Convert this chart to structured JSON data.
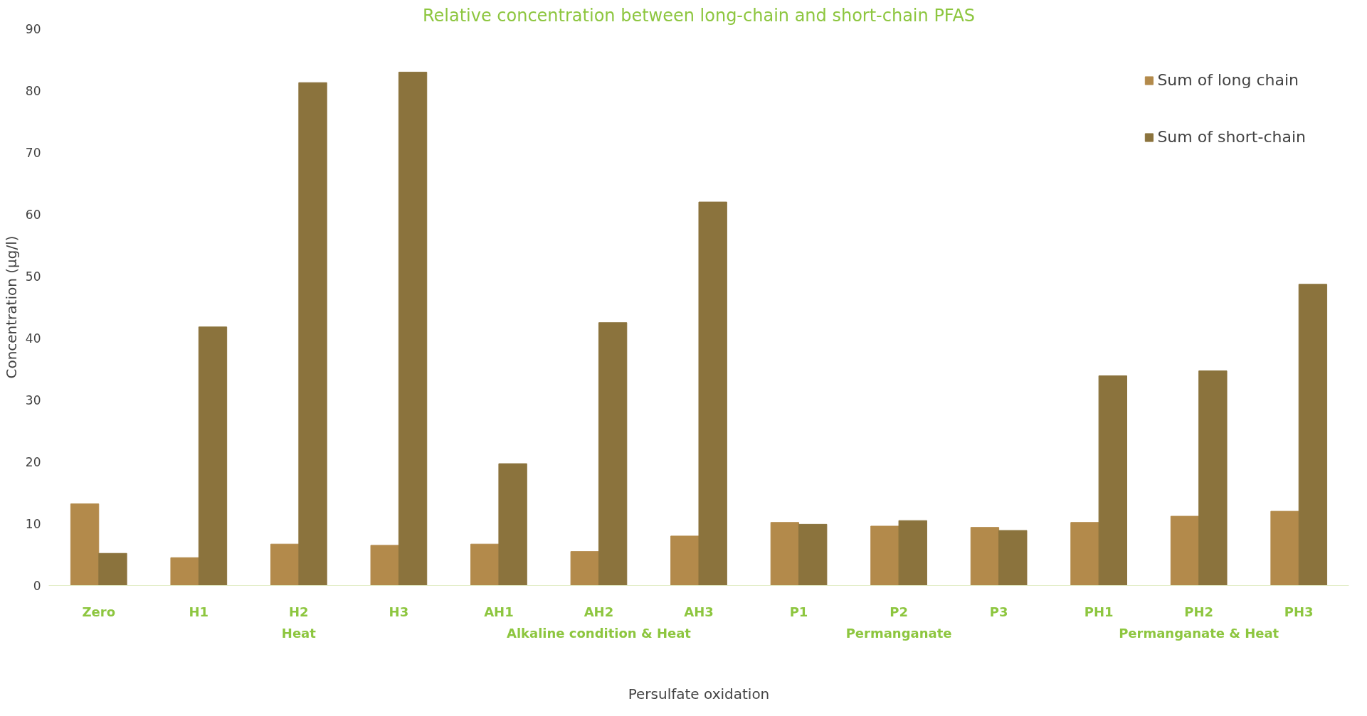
{
  "chart_data": {
    "type": "bar",
    "title": "Relative concentration between long-chain and short-chain PFAS",
    "xlabel": "Persulfate oxidation",
    "ylabel": "Concentration (µg/l)",
    "categories": [
      "Zero",
      "H1",
      "H2",
      "H3",
      "AH1",
      "AH2",
      "AH3",
      "P1",
      "P2",
      "P3",
      "PH1",
      "PH2",
      "PH3"
    ],
    "series": [
      {
        "name": "Sum of long chain",
        "color": "#b38a4b",
        "values": [
          13.2,
          4.5,
          6.7,
          6.5,
          6.7,
          5.5,
          8.0,
          10.2,
          9.6,
          9.4,
          10.2,
          11.2,
          12.0
        ]
      },
      {
        "name": "Sum of short-chain",
        "color": "#8b733d",
        "values": [
          5.2,
          41.8,
          81.3,
          83.0,
          19.7,
          42.5,
          62.0,
          9.9,
          10.5,
          8.9,
          33.9,
          34.7,
          48.7
        ]
      }
    ],
    "ylim": [
      0,
      90
    ],
    "yticks": [
      0,
      10,
      20,
      30,
      40,
      50,
      60,
      70,
      80,
      90
    ],
    "grid": false,
    "legend": "top right",
    "annotations": [
      "Heat",
      "Alkaline condition & Heat",
      "Permanganate",
      "Permanganate & Heat"
    ]
  }
}
